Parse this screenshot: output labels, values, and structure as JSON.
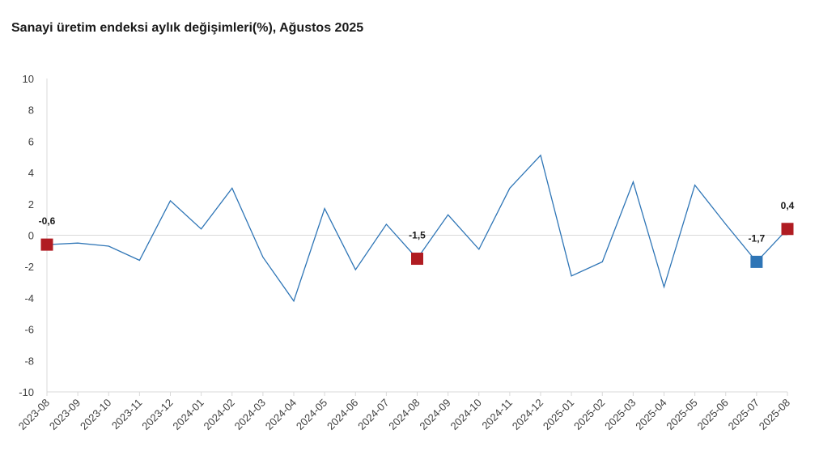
{
  "chart_data": {
    "type": "line",
    "title": "Sanayi üretim endeksi aylık değişimleri(%), Ağustos 2025",
    "xlabel": "",
    "ylabel": "",
    "ylim": [
      -10,
      10
    ],
    "yticks": [
      10,
      8,
      6,
      4,
      2,
      0,
      -2,
      -4,
      -6,
      -8,
      -10
    ],
    "grid": false,
    "legend": "none",
    "categories": [
      "2023-08",
      "2023-09",
      "2023-10",
      "2023-11",
      "2023-12",
      "2024-01",
      "2024-02",
      "2024-03",
      "2024-04",
      "2024-05",
      "2024-06",
      "2024-07",
      "2024-08",
      "2024-09",
      "2024-10",
      "2024-11",
      "2024-12",
      "2025-01",
      "2025-02",
      "2025-03",
      "2025-04",
      "2025-05",
      "2025-06",
      "2025-07",
      "2025-08"
    ],
    "series": [
      {
        "values": [
          -0.6,
          -0.5,
          -0.7,
          -1.6,
          2.2,
          0.4,
          3.0,
          -1.4,
          -4.2,
          1.7,
          -2.2,
          0.7,
          -1.5,
          1.3,
          -0.9,
          3.0,
          5.1,
          -2.6,
          -1.7,
          3.4,
          -3.3,
          3.2,
          0.7,
          -1.7,
          0.4
        ],
        "color": "#2e75b6"
      }
    ],
    "highlighted_points": [
      {
        "index": 0,
        "label": "-0,6",
        "color": "#b01c22"
      },
      {
        "index": 12,
        "label": "-1,5",
        "color": "#b01c22"
      },
      {
        "index": 23,
        "label": "-1,7",
        "color": "#2e75b6"
      },
      {
        "index": 24,
        "label": "0,4",
        "color": "#b01c22"
      }
    ],
    "colors": {
      "axis": "#d9d9d9",
      "text": "#404040"
    }
  }
}
